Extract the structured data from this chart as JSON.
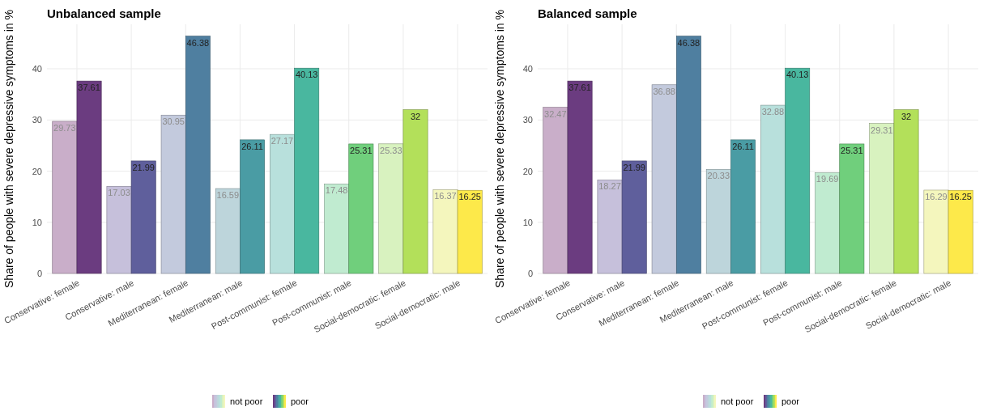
{
  "chart_data": [
    {
      "type": "bar",
      "title": "Unbalanced sample",
      "ylabel": "Share of people with severe depressive symptoms in %",
      "categories": [
        "Conservative: female",
        "Conservative: male",
        "Mediterranean: female",
        "Mediterranean: male",
        "Post-communist: female",
        "Post-communist: male",
        "Social-democratic: female",
        "Social-democratic: male"
      ],
      "ylim": [
        0,
        48.7
      ],
      "yticks": [
        0,
        10,
        20,
        30,
        40
      ],
      "grid": true,
      "legend": "bottom",
      "data_labels": true,
      "series": [
        {
          "name": "not poor",
          "colors": [
            "#c9aec9",
            "#c6c0db",
            "#c3cadd",
            "#bdd5db",
            "#b8e0dc",
            "#c0ebd0",
            "#d8f2bf",
            "#f4f6bd"
          ],
          "values": [
            29.73,
            17.03,
            30.95,
            16.59,
            27.17,
            17.48,
            25.33,
            16.37
          ]
        },
        {
          "name": "poor",
          "colors": [
            "#6b3c80",
            "#5f5f9c",
            "#4f7fa0",
            "#4a9ca4",
            "#49b79f",
            "#70cf7c",
            "#b3e05a",
            "#fde94a"
          ],
          "values": [
            37.61,
            21.99,
            46.38,
            26.11,
            40.13,
            25.31,
            32,
            16.25
          ]
        }
      ]
    },
    {
      "type": "bar",
      "title": "Balanced sample",
      "ylabel": "Share of people with severe depressive symptoms in %",
      "categories": [
        "Conservative: female",
        "Conservative: male",
        "Mediterranean: female",
        "Mediterranean: male",
        "Post-communist: female",
        "Post-communist: male",
        "Social-democratic: female",
        "Social-democratic: male"
      ],
      "ylim": [
        0,
        48.7
      ],
      "yticks": [
        0,
        10,
        20,
        30,
        40
      ],
      "grid": true,
      "legend": "bottom",
      "data_labels": true,
      "series": [
        {
          "name": "not poor",
          "colors": [
            "#c9aec9",
            "#c6c0db",
            "#c3cadd",
            "#bdd5db",
            "#b8e0dc",
            "#c0ebd0",
            "#d8f2bf",
            "#f4f6bd"
          ],
          "values": [
            32.47,
            18.27,
            36.88,
            20.33,
            32.88,
            19.69,
            29.31,
            16.29
          ]
        },
        {
          "name": "poor",
          "colors": [
            "#6b3c80",
            "#5f5f9c",
            "#4f7fa0",
            "#4a9ca4",
            "#49b79f",
            "#70cf7c",
            "#b3e05a",
            "#fde94a"
          ],
          "values": [
            37.61,
            21.99,
            46.38,
            26.11,
            40.13,
            25.31,
            32,
            16.25
          ]
        }
      ]
    }
  ]
}
